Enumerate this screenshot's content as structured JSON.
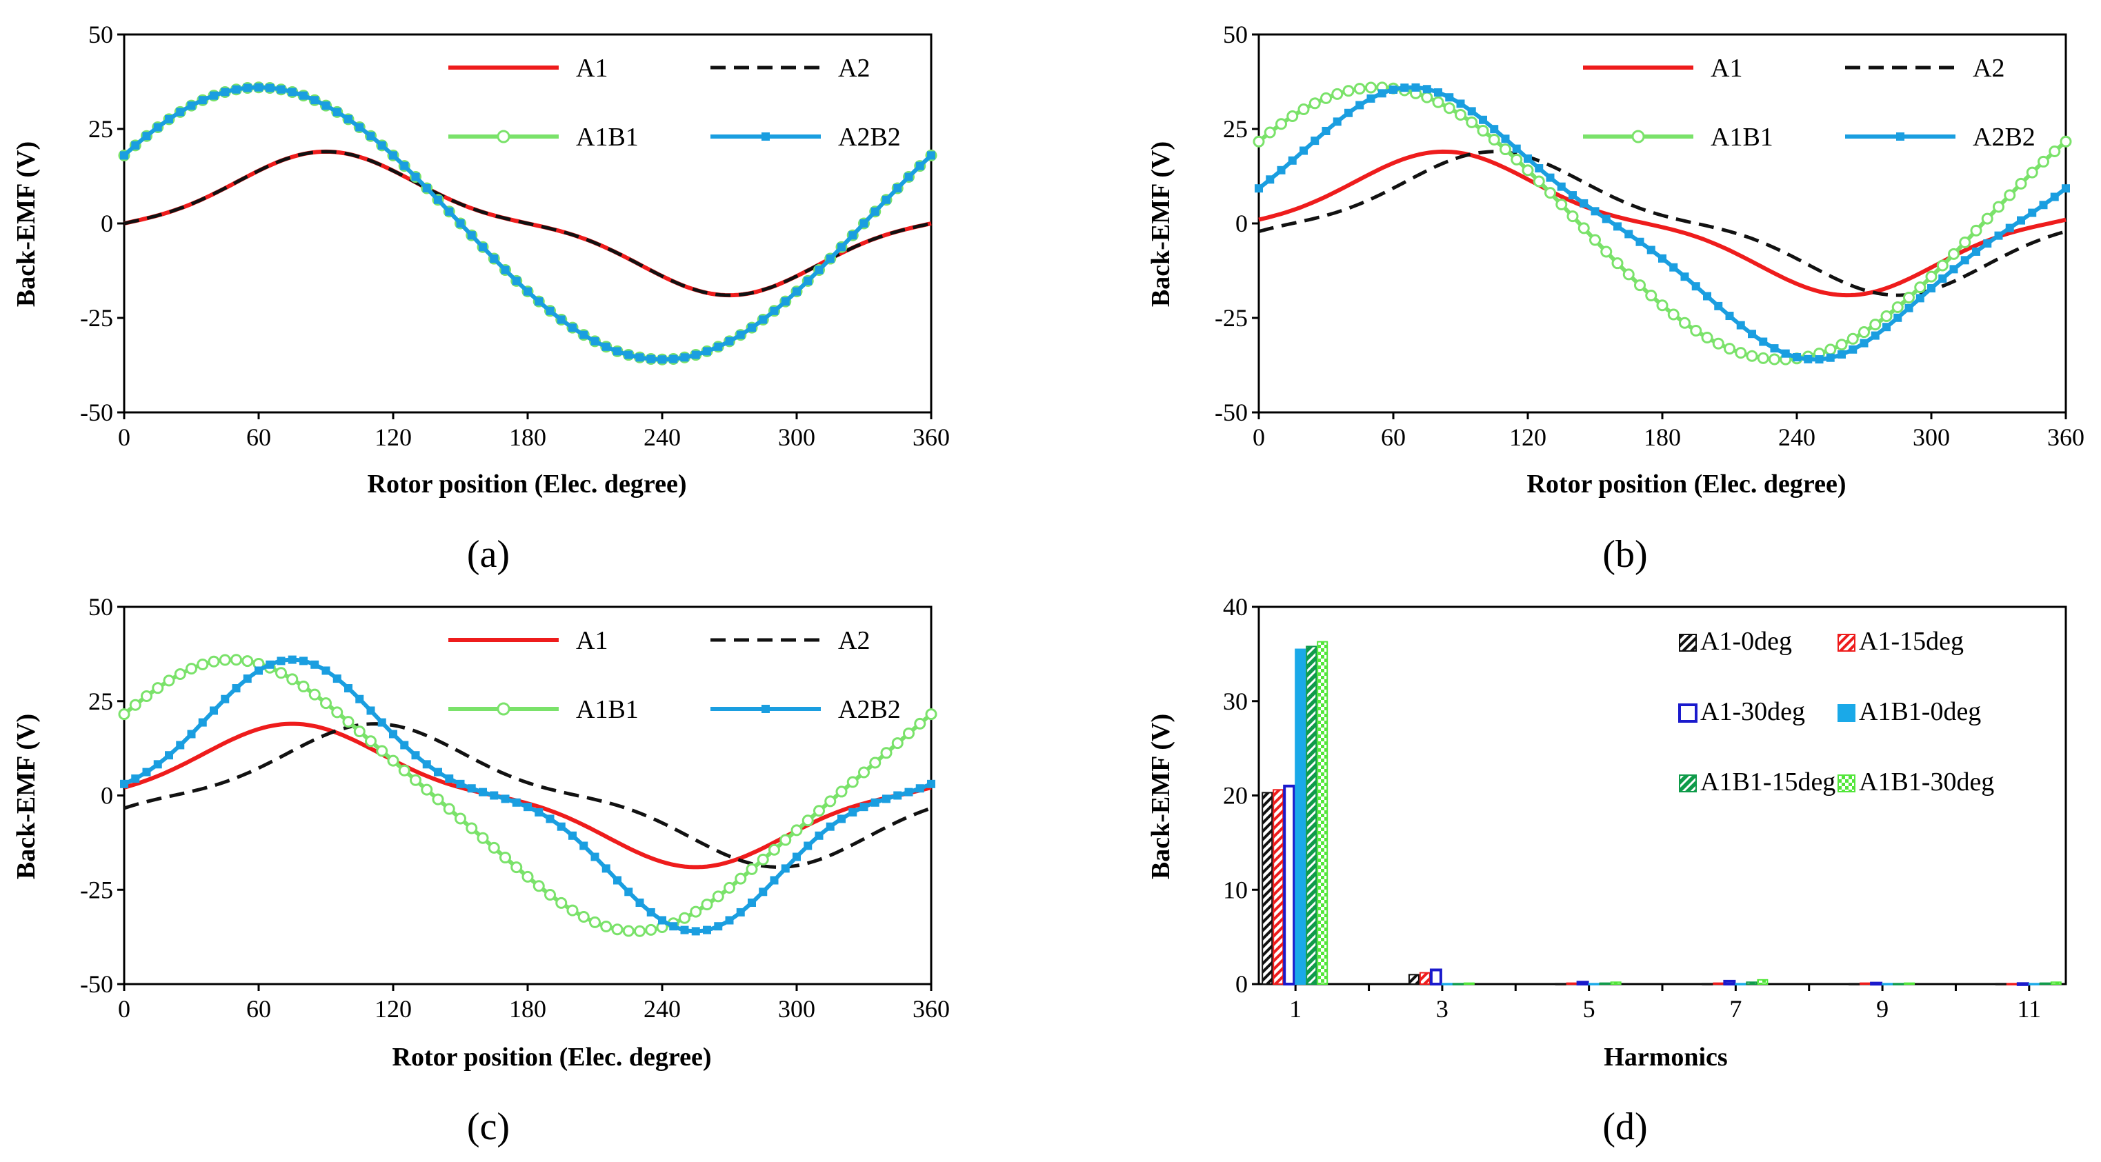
{
  "chart_data": [
    {
      "id": "a",
      "type": "line",
      "panel_label": "(a)",
      "xlabel": "Rotor position (Elec. degree)",
      "ylabel": "Back-EMF (V)",
      "xlim": [
        0,
        360
      ],
      "ylim": [
        -50,
        50
      ],
      "xticks": [
        0,
        60,
        120,
        180,
        240,
        300,
        360
      ],
      "yticks": [
        -50,
        -25,
        0,
        25,
        50
      ],
      "legend_position": "top-right",
      "series": [
        {
          "name": "A1",
          "color": "#ee1c1c",
          "style": "solid",
          "amplitude": 19,
          "phase": 0,
          "flatten": 0.18
        },
        {
          "name": "A2",
          "color": "#111111",
          "style": "dashed",
          "amplitude": 19,
          "phase": 0,
          "flatten": 0.18
        },
        {
          "name": "A1B1",
          "color": "#7ae26a",
          "style": "circle",
          "amplitude": 36,
          "phase": 30,
          "flatten": 0
        },
        {
          "name": "A2B2",
          "color": "#1a9ee0",
          "style": "square",
          "amplitude": 36,
          "phase": 30,
          "flatten": 0
        }
      ]
    },
    {
      "id": "b",
      "type": "line",
      "panel_label": "(b)",
      "xlabel": "Rotor position (Elec. degree)",
      "ylabel": "Back-EMF (V)",
      "xlim": [
        0,
        360
      ],
      "ylim": [
        -50,
        50
      ],
      "xticks": [
        0,
        60,
        120,
        180,
        240,
        300,
        360
      ],
      "yticks": [
        -50,
        -25,
        0,
        25,
        50
      ],
      "legend_position": "top-right",
      "series": [
        {
          "name": "A1",
          "color": "#ee1c1c",
          "style": "solid",
          "amplitude": 19,
          "phase": 7.5,
          "flatten": 0.18
        },
        {
          "name": "A2",
          "color": "#111111",
          "style": "dashed",
          "amplitude": 19,
          "phase": -15,
          "flatten": 0.18
        },
        {
          "name": "A1B1",
          "color": "#7ae26a",
          "style": "circle",
          "amplitude": 36,
          "phase": 37,
          "flatten": 0
        },
        {
          "name": "A2B2",
          "color": "#1a9ee0",
          "style": "square",
          "amplitude": 36,
          "phase": 22,
          "flatten": 0.1
        }
      ]
    },
    {
      "id": "c",
      "type": "line",
      "panel_label": "(c)",
      "xlabel": "Rotor position (Elec. degree)",
      "ylabel": "Back-EMF (V)",
      "xlim": [
        0,
        360
      ],
      "ylim": [
        -50,
        50
      ],
      "xticks": [
        0,
        60,
        120,
        180,
        240,
        300,
        360
      ],
      "yticks": [
        -50,
        -25,
        0,
        25,
        50
      ],
      "legend_position": "top-right",
      "series": [
        {
          "name": "A1",
          "color": "#ee1c1c",
          "style": "solid",
          "amplitude": 19,
          "phase": 15,
          "flatten": 0.18
        },
        {
          "name": "A2",
          "color": "#111111",
          "style": "dashed",
          "amplitude": 19,
          "phase": -22,
          "flatten": 0.18
        },
        {
          "name": "A1B1",
          "color": "#7ae26a",
          "style": "circle",
          "amplitude": 36,
          "phase": 42,
          "flatten": 0.05
        },
        {
          "name": "A2B2",
          "color": "#1a9ee0",
          "style": "square",
          "amplitude": 36,
          "phase": 15,
          "flatten": 0.22
        }
      ]
    },
    {
      "id": "d",
      "type": "bar",
      "panel_label": "(d)",
      "xlabel": "Harmonics",
      "ylabel": "Back-EMF (V)",
      "ylim": [
        0,
        40
      ],
      "yticks": [
        0,
        10,
        20,
        30,
        40
      ],
      "categories": [
        "1",
        "2",
        "3",
        "4",
        "5",
        "6",
        "7",
        "8",
        "9",
        "10",
        "11"
      ],
      "xtick_labels": [
        "1",
        "3",
        "5",
        "7",
        "9",
        "11"
      ],
      "legend_position": "top-right",
      "series": [
        {
          "name": "A1-0deg",
          "color": "#111111",
          "pattern": "diagonal",
          "values": [
            20.3,
            0,
            1.0,
            0,
            0.05,
            0,
            0.05,
            0,
            0.05,
            0,
            0.05
          ]
        },
        {
          "name": "A1-15deg",
          "color": "#ee1c1c",
          "pattern": "diagonal",
          "values": [
            20.6,
            0,
            1.2,
            0,
            0.1,
            0,
            0.1,
            0,
            0.1,
            0,
            0.05
          ]
        },
        {
          "name": "A1-30deg",
          "color": "#1a1acc",
          "pattern": "outline",
          "values": [
            21.0,
            0,
            1.5,
            0,
            0.2,
            0,
            0.3,
            0,
            0.1,
            0,
            0.05
          ]
        },
        {
          "name": "A1B1-0deg",
          "color": "#1aa9e8",
          "pattern": "solid",
          "values": [
            35.5,
            0,
            0.05,
            0,
            0.05,
            0,
            0.05,
            0,
            0.05,
            0,
            0.05
          ]
        },
        {
          "name": "A1B1-15deg",
          "color": "#0f9b4a",
          "pattern": "diagonal",
          "values": [
            35.8,
            0,
            0.05,
            0,
            0.1,
            0,
            0.2,
            0,
            0.05,
            0,
            0.1
          ]
        },
        {
          "name": "A1B1-30deg",
          "color": "#52e63a",
          "pattern": "check",
          "values": [
            36.3,
            0,
            0.1,
            0,
            0.2,
            0,
            0.45,
            0,
            0.1,
            0,
            0.2
          ]
        }
      ]
    }
  ]
}
